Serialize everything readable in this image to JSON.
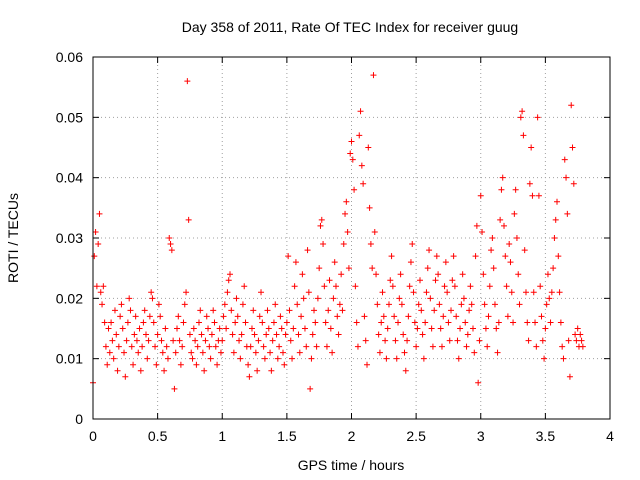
{
  "chart_data": {
    "type": "scatter",
    "title": "Day 358 of 2011, Rate Of TEC Index for receiver guug",
    "xlabel": "GPS time / hours",
    "ylabel": "ROTI / TECUs",
    "xlim": [
      0,
      4
    ],
    "ylim": [
      0,
      0.06
    ],
    "xticks": [
      0,
      0.5,
      1,
      1.5,
      2,
      2.5,
      3,
      3.5,
      4
    ],
    "xtick_labels": [
      "0",
      "0.5",
      "1",
      "1.5",
      "2",
      "2.5",
      "3",
      "3.5",
      "4"
    ],
    "yticks": [
      0,
      0.01,
      0.02,
      0.03,
      0.04,
      0.05,
      0.06
    ],
    "ytick_labels": [
      "0",
      "0.01",
      "0.02",
      "0.03",
      "0.04",
      "0.05",
      "0.06"
    ],
    "grid": true,
    "marker": "+",
    "color": "#ff0000",
    "points": [
      [
        0.0,
        0.006
      ],
      [
        0.01,
        0.027
      ],
      [
        0.02,
        0.031
      ],
      [
        0.03,
        0.022
      ],
      [
        0.04,
        0.029
      ],
      [
        0.05,
        0.034
      ],
      [
        0.06,
        0.021
      ],
      [
        0.07,
        0.019
      ],
      [
        0.08,
        0.022
      ],
      [
        0.09,
        0.016
      ],
      [
        0.1,
        0.012
      ],
      [
        0.11,
        0.009
      ],
      [
        0.12,
        0.015
      ],
      [
        0.13,
        0.011
      ],
      [
        0.14,
        0.016
      ],
      [
        0.15,
        0.013
      ],
      [
        0.16,
        0.01
      ],
      [
        0.17,
        0.018
      ],
      [
        0.18,
        0.014
      ],
      [
        0.19,
        0.008
      ],
      [
        0.2,
        0.012
      ],
      [
        0.21,
        0.017
      ],
      [
        0.22,
        0.019
      ],
      [
        0.23,
        0.015
      ],
      [
        0.24,
        0.011
      ],
      [
        0.25,
        0.007
      ],
      [
        0.26,
        0.013
      ],
      [
        0.27,
        0.016
      ],
      [
        0.28,
        0.02
      ],
      [
        0.29,
        0.018
      ],
      [
        0.3,
        0.012
      ],
      [
        0.31,
        0.009
      ],
      [
        0.32,
        0.014
      ],
      [
        0.33,
        0.017
      ],
      [
        0.34,
        0.013
      ],
      [
        0.35,
        0.011
      ],
      [
        0.36,
        0.015
      ],
      [
        0.37,
        0.008
      ],
      [
        0.38,
        0.012
      ],
      [
        0.39,
        0.016
      ],
      [
        0.4,
        0.018
      ],
      [
        0.41,
        0.014
      ],
      [
        0.42,
        0.01
      ],
      [
        0.43,
        0.013
      ],
      [
        0.44,
        0.017
      ],
      [
        0.45,
        0.021
      ],
      [
        0.46,
        0.02
      ],
      [
        0.47,
        0.016
      ],
      [
        0.48,
        0.012
      ],
      [
        0.49,
        0.009
      ],
      [
        0.5,
        0.014
      ],
      [
        0.51,
        0.019
      ],
      [
        0.52,
        0.017
      ],
      [
        0.53,
        0.013
      ],
      [
        0.54,
        0.011
      ],
      [
        0.55,
        0.008
      ],
      [
        0.56,
        0.015
      ],
      [
        0.57,
        0.012
      ],
      [
        0.58,
        0.01
      ],
      [
        0.59,
        0.03
      ],
      [
        0.6,
        0.029
      ],
      [
        0.61,
        0.028
      ],
      [
        0.62,
        0.013
      ],
      [
        0.63,
        0.005
      ],
      [
        0.64,
        0.011
      ],
      [
        0.65,
        0.015
      ],
      [
        0.66,
        0.017
      ],
      [
        0.67,
        0.013
      ],
      [
        0.68,
        0.009
      ],
      [
        0.69,
        0.012
      ],
      [
        0.7,
        0.016
      ],
      [
        0.71,
        0.019
      ],
      [
        0.72,
        0.021
      ],
      [
        0.73,
        0.056
      ],
      [
        0.74,
        0.033
      ],
      [
        0.75,
        0.014
      ],
      [
        0.76,
        0.011
      ],
      [
        0.77,
        0.01
      ],
      [
        0.78,
        0.015
      ],
      [
        0.79,
        0.013
      ],
      [
        0.8,
        0.009
      ],
      [
        0.81,
        0.012
      ],
      [
        0.82,
        0.016
      ],
      [
        0.83,
        0.018
      ],
      [
        0.84,
        0.014
      ],
      [
        0.85,
        0.011
      ],
      [
        0.86,
        0.008
      ],
      [
        0.87,
        0.013
      ],
      [
        0.88,
        0.017
      ],
      [
        0.89,
        0.015
      ],
      [
        0.9,
        0.012
      ],
      [
        0.91,
        0.01
      ],
      [
        0.92,
        0.014
      ],
      [
        0.93,
        0.018
      ],
      [
        0.94,
        0.016
      ],
      [
        0.95,
        0.012
      ],
      [
        0.96,
        0.009
      ],
      [
        0.97,
        0.013
      ],
      [
        0.98,
        0.015
      ],
      [
        0.99,
        0.011
      ],
      [
        1.0,
        0.013
      ],
      [
        1.01,
        0.017
      ],
      [
        1.02,
        0.019
      ],
      [
        1.03,
        0.015
      ],
      [
        1.04,
        0.021
      ],
      [
        1.05,
        0.023
      ],
      [
        1.06,
        0.024
      ],
      [
        1.07,
        0.018
      ],
      [
        1.08,
        0.014
      ],
      [
        1.09,
        0.011
      ],
      [
        1.1,
        0.016
      ],
      [
        1.11,
        0.02
      ],
      [
        1.12,
        0.017
      ],
      [
        1.13,
        0.013
      ],
      [
        1.14,
        0.01
      ],
      [
        1.15,
        0.014
      ],
      [
        1.16,
        0.019
      ],
      [
        1.17,
        0.022
      ],
      [
        1.18,
        0.016
      ],
      [
        1.19,
        0.012
      ],
      [
        1.2,
        0.009
      ],
      [
        1.21,
        0.007
      ],
      [
        1.22,
        0.012
      ],
      [
        1.23,
        0.015
      ],
      [
        1.24,
        0.018
      ],
      [
        1.25,
        0.014
      ],
      [
        1.26,
        0.011
      ],
      [
        1.27,
        0.008
      ],
      [
        1.28,
        0.013
      ],
      [
        1.29,
        0.017
      ],
      [
        1.3,
        0.021
      ],
      [
        1.31,
        0.016
      ],
      [
        1.32,
        0.012
      ],
      [
        1.33,
        0.01
      ],
      [
        1.34,
        0.014
      ],
      [
        1.35,
        0.018
      ],
      [
        1.36,
        0.015
      ],
      [
        1.37,
        0.011
      ],
      [
        1.38,
        0.008
      ],
      [
        1.39,
        0.013
      ],
      [
        1.4,
        0.016
      ],
      [
        1.41,
        0.019
      ],
      [
        1.42,
        0.014
      ],
      [
        1.43,
        0.01
      ],
      [
        1.44,
        0.012
      ],
      [
        1.45,
        0.017
      ],
      [
        1.46,
        0.015
      ],
      [
        1.47,
        0.011
      ],
      [
        1.48,
        0.009
      ],
      [
        1.49,
        0.014
      ],
      [
        1.5,
        0.016
      ],
      [
        1.51,
        0.027
      ],
      [
        1.52,
        0.018
      ],
      [
        1.53,
        0.013
      ],
      [
        1.54,
        0.01
      ],
      [
        1.55,
        0.015
      ],
      [
        1.56,
        0.022
      ],
      [
        1.57,
        0.026
      ],
      [
        1.58,
        0.019
      ],
      [
        1.59,
        0.014
      ],
      [
        1.6,
        0.011
      ],
      [
        1.61,
        0.017
      ],
      [
        1.62,
        0.024
      ],
      [
        1.63,
        0.02
      ],
      [
        1.64,
        0.015
      ],
      [
        1.65,
        0.012
      ],
      [
        1.66,
        0.028
      ],
      [
        1.67,
        0.021
      ],
      [
        1.68,
        0.005
      ],
      [
        1.69,
        0.01
      ],
      [
        1.7,
        0.014
      ],
      [
        1.71,
        0.018
      ],
      [
        1.72,
        0.016
      ],
      [
        1.73,
        0.012
      ],
      [
        1.74,
        0.02
      ],
      [
        1.75,
        0.025
      ],
      [
        1.76,
        0.032
      ],
      [
        1.77,
        0.033
      ],
      [
        1.78,
        0.029
      ],
      [
        1.79,
        0.022
      ],
      [
        1.8,
        0.016
      ],
      [
        1.81,
        0.012
      ],
      [
        1.82,
        0.018
      ],
      [
        1.83,
        0.023
      ],
      [
        1.84,
        0.015
      ],
      [
        1.85,
        0.011
      ],
      [
        1.86,
        0.02
      ],
      [
        1.87,
        0.026
      ],
      [
        1.88,
        0.022
      ],
      [
        1.89,
        0.017
      ],
      [
        1.9,
        0.014
      ],
      [
        1.91,
        0.019
      ],
      [
        1.92,
        0.024
      ],
      [
        1.93,
        0.018
      ],
      [
        1.94,
        0.029
      ],
      [
        1.95,
        0.034
      ],
      [
        1.96,
        0.036
      ],
      [
        1.97,
        0.031
      ],
      [
        1.98,
        0.025
      ],
      [
        1.99,
        0.044
      ],
      [
        2.0,
        0.046
      ],
      [
        2.01,
        0.043
      ],
      [
        2.02,
        0.038
      ],
      [
        2.03,
        0.022
      ],
      [
        2.04,
        0.016
      ],
      [
        2.05,
        0.012
      ],
      [
        2.06,
        0.047
      ],
      [
        2.07,
        0.051
      ],
      [
        2.08,
        0.042
      ],
      [
        2.09,
        0.039
      ],
      [
        2.1,
        0.017
      ],
      [
        2.11,
        0.013
      ],
      [
        2.12,
        0.009
      ],
      [
        2.13,
        0.045
      ],
      [
        2.14,
        0.035
      ],
      [
        2.15,
        0.029
      ],
      [
        2.16,
        0.025
      ],
      [
        2.17,
        0.057
      ],
      [
        2.18,
        0.031
      ],
      [
        2.19,
        0.024
      ],
      [
        2.2,
        0.019
      ],
      [
        2.21,
        0.014
      ],
      [
        2.22,
        0.011
      ],
      [
        2.23,
        0.016
      ],
      [
        2.24,
        0.021
      ],
      [
        2.25,
        0.017
      ],
      [
        2.26,
        0.013
      ],
      [
        2.27,
        0.01
      ],
      [
        2.28,
        0.015
      ],
      [
        2.29,
        0.019
      ],
      [
        2.3,
        0.023
      ],
      [
        2.31,
        0.027
      ],
      [
        2.32,
        0.022
      ],
      [
        2.33,
        0.017
      ],
      [
        2.34,
        0.013
      ],
      [
        2.35,
        0.01
      ],
      [
        2.36,
        0.016
      ],
      [
        2.37,
        0.02
      ],
      [
        2.38,
        0.024
      ],
      [
        2.39,
        0.019
      ],
      [
        2.4,
        0.014
      ],
      [
        2.41,
        0.011
      ],
      [
        2.42,
        0.008
      ],
      [
        2.43,
        0.013
      ],
      [
        2.44,
        0.017
      ],
      [
        2.45,
        0.022
      ],
      [
        2.46,
        0.026
      ],
      [
        2.47,
        0.029
      ],
      [
        2.48,
        0.021
      ],
      [
        2.49,
        0.016
      ],
      [
        2.5,
        0.012
      ],
      [
        2.51,
        0.015
      ],
      [
        2.52,
        0.019
      ],
      [
        2.53,
        0.023
      ],
      [
        2.54,
        0.018
      ],
      [
        2.55,
        0.014
      ],
      [
        2.56,
        0.01
      ],
      [
        2.57,
        0.016
      ],
      [
        2.58,
        0.021
      ],
      [
        2.59,
        0.025
      ],
      [
        2.6,
        0.028
      ],
      [
        2.61,
        0.02
      ],
      [
        2.62,
        0.015
      ],
      [
        2.63,
        0.012
      ],
      [
        2.64,
        0.018
      ],
      [
        2.65,
        0.023
      ],
      [
        2.66,
        0.027
      ],
      [
        2.67,
        0.024
      ],
      [
        2.68,
        0.019
      ],
      [
        2.69,
        0.015
      ],
      [
        2.7,
        0.012
      ],
      [
        2.71,
        0.017
      ],
      [
        2.72,
        0.022
      ],
      [
        2.73,
        0.026
      ],
      [
        2.74,
        0.021
      ],
      [
        2.75,
        0.016
      ],
      [
        2.76,
        0.013
      ],
      [
        2.77,
        0.018
      ],
      [
        2.78,
        0.023
      ],
      [
        2.79,
        0.027
      ],
      [
        2.8,
        0.022
      ],
      [
        2.81,
        0.017
      ],
      [
        2.82,
        0.013
      ],
      [
        2.83,
        0.01
      ],
      [
        2.84,
        0.015
      ],
      [
        2.85,
        0.019
      ],
      [
        2.86,
        0.024
      ],
      [
        2.87,
        0.02
      ],
      [
        2.88,
        0.016
      ],
      [
        2.89,
        0.012
      ],
      [
        2.9,
        0.014
      ],
      [
        2.91,
        0.018
      ],
      [
        2.92,
        0.022
      ],
      [
        2.93,
        0.019
      ],
      [
        2.94,
        0.015
      ],
      [
        2.95,
        0.011
      ],
      [
        2.96,
        0.027
      ],
      [
        2.97,
        0.032
      ],
      [
        2.98,
        0.006
      ],
      [
        2.99,
        0.013
      ],
      [
        3.0,
        0.037
      ],
      [
        3.01,
        0.031
      ],
      [
        3.02,
        0.024
      ],
      [
        3.03,
        0.019
      ],
      [
        3.04,
        0.015
      ],
      [
        3.05,
        0.012
      ],
      [
        3.06,
        0.017
      ],
      [
        3.07,
        0.022
      ],
      [
        3.08,
        0.028
      ],
      [
        3.09,
        0.03
      ],
      [
        3.1,
        0.025
      ],
      [
        3.11,
        0.019
      ],
      [
        3.12,
        0.015
      ],
      [
        3.13,
        0.011
      ],
      [
        3.14,
        0.016
      ],
      [
        3.15,
        0.033
      ],
      [
        3.16,
        0.038
      ],
      [
        3.17,
        0.04
      ],
      [
        3.18,
        0.032
      ],
      [
        3.19,
        0.027
      ],
      [
        3.2,
        0.022
      ],
      [
        3.21,
        0.017
      ],
      [
        3.22,
        0.029
      ],
      [
        3.23,
        0.026
      ],
      [
        3.24,
        0.021
      ],
      [
        3.25,
        0.016
      ],
      [
        3.26,
        0.034
      ],
      [
        3.27,
        0.038
      ],
      [
        3.28,
        0.03
      ],
      [
        3.29,
        0.024
      ],
      [
        3.3,
        0.019
      ],
      [
        3.31,
        0.05
      ],
      [
        3.32,
        0.051
      ],
      [
        3.33,
        0.047
      ],
      [
        3.34,
        0.028
      ],
      [
        3.35,
        0.021
      ],
      [
        3.36,
        0.016
      ],
      [
        3.37,
        0.013
      ],
      [
        3.38,
        0.039
      ],
      [
        3.39,
        0.045
      ],
      [
        3.4,
        0.037
      ],
      [
        3.41,
        0.021
      ],
      [
        3.42,
        0.016
      ],
      [
        3.43,
        0.012
      ],
      [
        3.44,
        0.05
      ],
      [
        3.45,
        0.037
      ],
      [
        3.46,
        0.022
      ],
      [
        3.47,
        0.017
      ],
      [
        3.48,
        0.013
      ],
      [
        3.49,
        0.01
      ],
      [
        3.5,
        0.015
      ],
      [
        3.51,
        0.019
      ],
      [
        3.52,
        0.024
      ],
      [
        3.53,
        0.02
      ],
      [
        3.54,
        0.016
      ],
      [
        3.55,
        0.021
      ],
      [
        3.56,
        0.025
      ],
      [
        3.57,
        0.03
      ],
      [
        3.58,
        0.033
      ],
      [
        3.59,
        0.036
      ],
      [
        3.6,
        0.027
      ],
      [
        3.61,
        0.021
      ],
      [
        3.62,
        0.016
      ],
      [
        3.63,
        0.012
      ],
      [
        3.64,
        0.01
      ],
      [
        3.65,
        0.043
      ],
      [
        3.66,
        0.04
      ],
      [
        3.67,
        0.034
      ],
      [
        3.68,
        0.013
      ],
      [
        3.69,
        0.007
      ],
      [
        3.7,
        0.052
      ],
      [
        3.71,
        0.045
      ],
      [
        3.72,
        0.039
      ],
      [
        3.73,
        0.014
      ],
      [
        3.74,
        0.013
      ],
      [
        3.75,
        0.015
      ],
      [
        3.76,
        0.012
      ],
      [
        3.77,
        0.014
      ],
      [
        3.78,
        0.013
      ],
      [
        3.79,
        0.012
      ]
    ]
  }
}
